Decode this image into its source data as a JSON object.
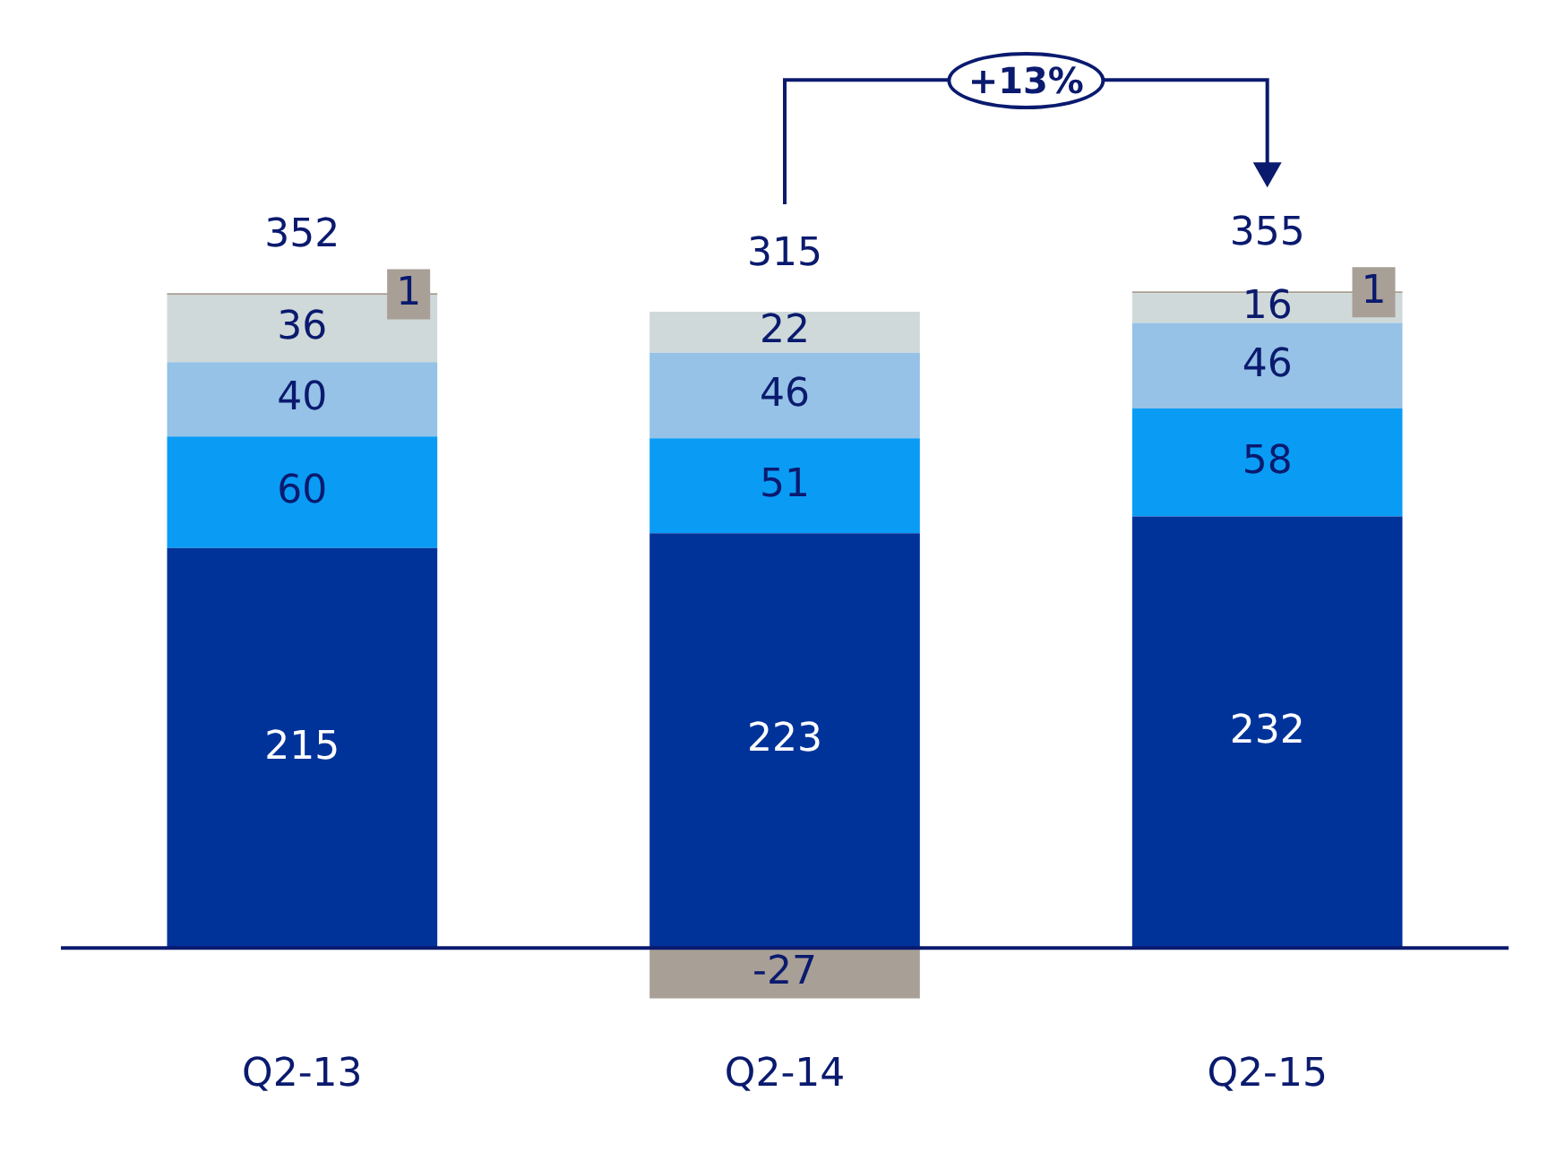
{
  "chart_data": {
    "type": "bar",
    "stacked": true,
    "data_labels": true,
    "legend": false,
    "grid": false,
    "categories": [
      "Q2-13",
      "Q2-14",
      "Q2-15"
    ],
    "series": [
      {
        "color": "#00339a",
        "values": [
          215,
          223,
          232
        ]
      },
      {
        "color": "#0a9cf5",
        "values": [
          60,
          51,
          58
        ]
      },
      {
        "color": "#95c2e6",
        "values": [
          40,
          46,
          46
        ]
      },
      {
        "color": "#cfd9d9",
        "values": [
          36,
          22,
          16
        ]
      },
      {
        "color": "#a89f96",
        "values": [
          1,
          -27,
          1
        ]
      }
    ],
    "totals": [
      "352",
      "315",
      "355"
    ],
    "ref_lines": [
      {
        "axis": "y",
        "value": 0,
        "color": "#0a1a6e"
      }
    ],
    "annotations": [
      "+13%"
    ]
  }
}
